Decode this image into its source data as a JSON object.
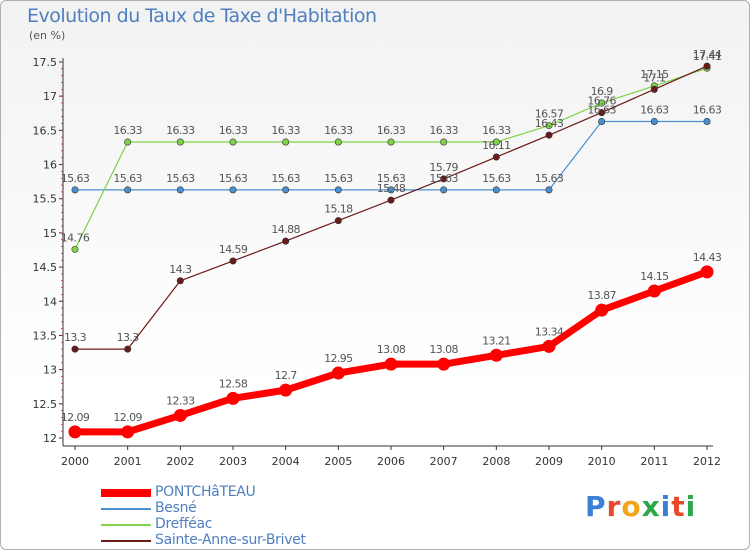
{
  "title": "Evolution du Taux de Taxe d'Habitation",
  "unit": "(en %)",
  "logo": {
    "text": "Proxiti",
    "letter_colors": [
      "#3b7fd6",
      "#e8482c",
      "#f2a51a",
      "#2aa84a",
      "#3b7fd6",
      "#e8482c",
      "#2aa84a"
    ]
  },
  "chart_data": {
    "type": "line",
    "title": "Evolution du Taux de Taxe d'Habitation",
    "ylabel": "(en %)",
    "xlabel": "",
    "x": [
      "2000",
      "2001",
      "2002",
      "2003",
      "2004",
      "2005",
      "2006",
      "2007",
      "2008",
      "2009",
      "2010",
      "2011",
      "2012"
    ],
    "ylim": [
      12,
      17.5
    ],
    "yticks": [
      "12",
      "12.5",
      "13",
      "13.5",
      "14",
      "14.5",
      "15",
      "15.5",
      "16",
      "16.5",
      "17",
      "17.5"
    ],
    "grid": "none",
    "legend_position": "bottom-left",
    "series": [
      {
        "name": "PONTCHâTEAU",
        "color": "#ff0000",
        "values": [
          12.09,
          12.09,
          12.33,
          12.58,
          12.7,
          12.95,
          13.08,
          13.08,
          13.21,
          13.34,
          13.87,
          14.15,
          14.43
        ],
        "labels": [
          "12.09",
          "12.09",
          "12.33",
          "12.58",
          "12.7",
          "12.95",
          "13.08",
          "13.08",
          "13.21",
          "13.34",
          "13.87",
          "14.15",
          "14.43"
        ]
      },
      {
        "name": "Besné",
        "color": "#4a90d0",
        "values": [
          15.63,
          15.63,
          15.63,
          15.63,
          15.63,
          15.63,
          15.63,
          15.63,
          15.63,
          15.63,
          16.63,
          16.63,
          16.63
        ],
        "labels": [
          "15.63",
          "15.63",
          "15.63",
          "15.63",
          "15.63",
          "15.63",
          "15.63",
          "15.63",
          "15.63",
          "15.63",
          "16.63",
          "16.63",
          "16.63"
        ]
      },
      {
        "name": "Drefféac",
        "color": "#7ed348",
        "values": [
          14.76,
          16.33,
          16.33,
          16.33,
          16.33,
          16.33,
          16.33,
          16.33,
          16.33,
          16.57,
          16.9,
          17.15,
          17.41
        ],
        "labels": [
          "14.76",
          "16.33",
          "16.33",
          "16.33",
          "16.33",
          "16.33",
          "16.33",
          "16.33",
          "16.33",
          "16.57",
          "16.9",
          "17.15",
          "17.41"
        ]
      },
      {
        "name": "Sainte-Anne-sur-Brivet",
        "color": "#6b1a1a",
        "values": [
          13.3,
          13.3,
          14.3,
          14.59,
          14.88,
          15.18,
          15.48,
          15.79,
          16.11,
          16.43,
          16.76,
          17.1,
          17.44
        ],
        "labels": [
          "13.3",
          "13.3",
          "14.3",
          "14.59",
          "14.88",
          "15.18",
          "15.48",
          "15.79",
          "16.11",
          "16.43",
          "16.76",
          "17.1",
          "17.44"
        ]
      }
    ]
  }
}
